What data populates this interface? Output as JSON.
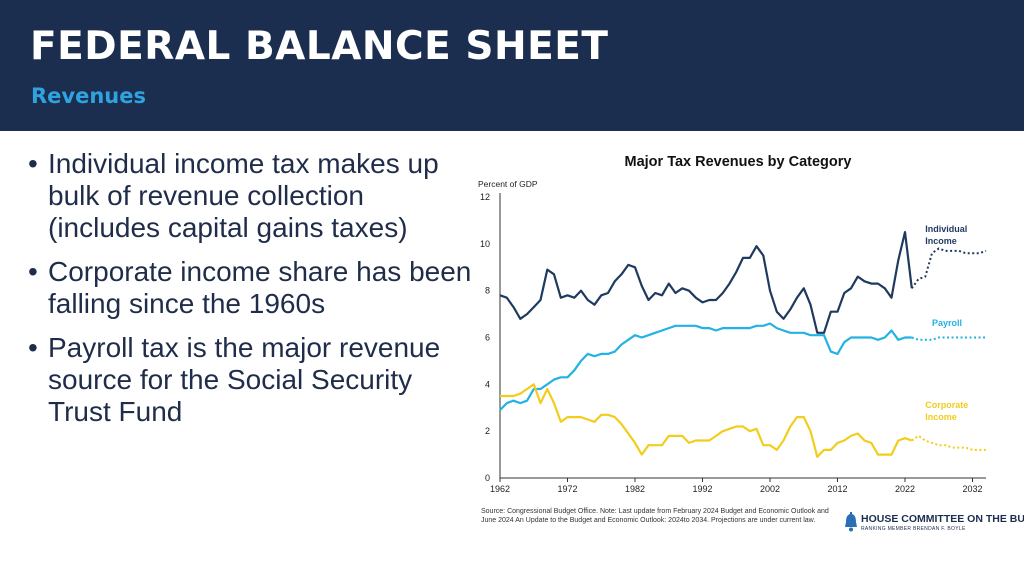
{
  "header": {
    "title": "FEDERAL BALANCE SHEET",
    "subtitle": "Revenues"
  },
  "bullets": [
    "Individual income tax makes up bulk of revenue collection (includes capital gains taxes)",
    "Corporate income share has been falling since the 1960s",
    "Payroll tax is the major revenue source for the Social Security Trust Fund"
  ],
  "bullet_symbol": "•",
  "source_note": "Source: Congressional Budget Office. Note: Last update from February 2024 Budget and Economic Outlook and June 2024 An Update to the Budget and Economic Outlook: 2024to 2034. Projections are under current law.",
  "logo": {
    "name": "HOUSE COMMITTEE ON THE BUDGET",
    "sub": "RANKING MEMBER BRENDAN F. BOYLE",
    "icon": "liberty-bell-icon"
  },
  "colors": {
    "header_bg": "#1c2e4f",
    "subtitle": "#2fa3e0",
    "individual": "#1f3a5f",
    "payroll": "#22b2e3",
    "corporate": "#f2cd1c"
  },
  "chart_data": {
    "type": "line",
    "title": "Major Tax Revenues by Category",
    "ylabel": "Percent of GDP",
    "xlim": [
      1962,
      2034
    ],
    "ylim": [
      0,
      12
    ],
    "xticks": [
      1962,
      1972,
      1982,
      1992,
      2002,
      2012,
      2022,
      2032
    ],
    "yticks": [
      0,
      2,
      4,
      6,
      8,
      10,
      12
    ],
    "grid": false,
    "series": [
      {
        "name": "Individual Income",
        "label_lines": [
          "Individual",
          "Income"
        ],
        "color": "#1f3a5f",
        "x": [
          1962,
          1963,
          1964,
          1965,
          1966,
          1967,
          1968,
          1969,
          1970,
          1971,
          1972,
          1973,
          1974,
          1975,
          1976,
          1977,
          1978,
          1979,
          1980,
          1981,
          1982,
          1983,
          1984,
          1985,
          1986,
          1987,
          1988,
          1989,
          1990,
          1991,
          1992,
          1993,
          1994,
          1995,
          1996,
          1997,
          1998,
          1999,
          2000,
          2001,
          2002,
          2003,
          2004,
          2005,
          2006,
          2007,
          2008,
          2009,
          2010,
          2011,
          2012,
          2013,
          2014,
          2015,
          2016,
          2017,
          2018,
          2019,
          2020,
          2021,
          2022,
          2023
        ],
        "values": [
          7.8,
          7.7,
          7.3,
          6.8,
          7.0,
          7.3,
          7.6,
          8.9,
          8.7,
          7.7,
          7.8,
          7.7,
          8.0,
          7.6,
          7.4,
          7.8,
          7.9,
          8.4,
          8.7,
          9.1,
          9.0,
          8.2,
          7.6,
          7.9,
          7.8,
          8.3,
          7.9,
          8.1,
          8.0,
          7.7,
          7.5,
          7.6,
          7.6,
          7.9,
          8.3,
          8.8,
          9.4,
          9.4,
          9.9,
          9.5,
          8.0,
          7.1,
          6.8,
          7.2,
          7.7,
          8.1,
          7.4,
          6.2,
          6.2,
          7.1,
          7.1,
          7.9,
          8.1,
          8.6,
          8.4,
          8.3,
          8.3,
          8.1,
          7.7,
          9.3,
          10.5,
          8.1
        ],
        "projection_x": [
          2023,
          2024,
          2025,
          2026,
          2027,
          2028,
          2029,
          2030,
          2031,
          2032,
          2033,
          2034
        ],
        "projection_values": [
          8.1,
          8.5,
          8.6,
          9.6,
          9.8,
          9.7,
          9.7,
          9.7,
          9.6,
          9.6,
          9.6,
          9.7
        ]
      },
      {
        "name": "Payroll",
        "label_lines": [
          "Payroll"
        ],
        "color": "#22b2e3",
        "x": [
          1962,
          1963,
          1964,
          1965,
          1966,
          1967,
          1968,
          1969,
          1970,
          1971,
          1972,
          1973,
          1974,
          1975,
          1976,
          1977,
          1978,
          1979,
          1980,
          1981,
          1982,
          1983,
          1984,
          1985,
          1986,
          1987,
          1988,
          1989,
          1990,
          1991,
          1992,
          1993,
          1994,
          1995,
          1996,
          1997,
          1998,
          1999,
          2000,
          2001,
          2002,
          2003,
          2004,
          2005,
          2006,
          2007,
          2008,
          2009,
          2010,
          2011,
          2012,
          2013,
          2014,
          2015,
          2016,
          2017,
          2018,
          2019,
          2020,
          2021,
          2022,
          2023
        ],
        "values": [
          2.9,
          3.2,
          3.3,
          3.2,
          3.3,
          3.8,
          3.8,
          4.0,
          4.2,
          4.3,
          4.3,
          4.6,
          5.0,
          5.3,
          5.2,
          5.3,
          5.3,
          5.4,
          5.7,
          5.9,
          6.1,
          6.0,
          6.1,
          6.2,
          6.3,
          6.4,
          6.5,
          6.5,
          6.5,
          6.5,
          6.4,
          6.4,
          6.3,
          6.4,
          6.4,
          6.4,
          6.4,
          6.4,
          6.5,
          6.5,
          6.6,
          6.4,
          6.3,
          6.2,
          6.2,
          6.2,
          6.1,
          6.1,
          6.1,
          5.4,
          5.3,
          5.8,
          6.0,
          6.0,
          6.0,
          6.0,
          5.9,
          6.0,
          6.3,
          5.9,
          6.0,
          6.0
        ],
        "projection_x": [
          2023,
          2024,
          2025,
          2026,
          2027,
          2028,
          2029,
          2030,
          2031,
          2032,
          2033,
          2034
        ],
        "projection_values": [
          6.0,
          5.9,
          5.9,
          5.9,
          6.0,
          6.0,
          6.0,
          6.0,
          6.0,
          6.0,
          6.0,
          6.0
        ]
      },
      {
        "name": "Corporate Income",
        "label_lines": [
          "Corporate",
          "Income"
        ],
        "color": "#f2cd1c",
        "x": [
          1962,
          1963,
          1964,
          1965,
          1966,
          1967,
          1968,
          1969,
          1970,
          1971,
          1972,
          1973,
          1974,
          1975,
          1976,
          1977,
          1978,
          1979,
          1980,
          1981,
          1982,
          1983,
          1984,
          1985,
          1986,
          1987,
          1988,
          1989,
          1990,
          1991,
          1992,
          1993,
          1994,
          1995,
          1996,
          1997,
          1998,
          1999,
          2000,
          2001,
          2002,
          2003,
          2004,
          2005,
          2006,
          2007,
          2008,
          2009,
          2010,
          2011,
          2012,
          2013,
          2014,
          2015,
          2016,
          2017,
          2018,
          2019,
          2020,
          2021,
          2022,
          2023
        ],
        "values": [
          3.5,
          3.5,
          3.5,
          3.6,
          3.8,
          4.0,
          3.2,
          3.8,
          3.2,
          2.4,
          2.6,
          2.6,
          2.6,
          2.5,
          2.4,
          2.7,
          2.7,
          2.6,
          2.3,
          1.9,
          1.5,
          1.0,
          1.4,
          1.4,
          1.4,
          1.8,
          1.8,
          1.8,
          1.5,
          1.6,
          1.6,
          1.6,
          1.8,
          2.0,
          2.1,
          2.2,
          2.2,
          2.0,
          2.1,
          1.4,
          1.4,
          1.2,
          1.6,
          2.2,
          2.6,
          2.6,
          2.0,
          0.9,
          1.2,
          1.2,
          1.5,
          1.6,
          1.8,
          1.9,
          1.6,
          1.5,
          1.0,
          1.0,
          1.0,
          1.6,
          1.7,
          1.6
        ],
        "projection_x": [
          2023,
          2024,
          2025,
          2026,
          2027,
          2028,
          2029,
          2030,
          2031,
          2032,
          2033,
          2034
        ],
        "projection_values": [
          1.6,
          1.8,
          1.6,
          1.5,
          1.4,
          1.4,
          1.3,
          1.3,
          1.3,
          1.2,
          1.2,
          1.2
        ]
      }
    ]
  }
}
